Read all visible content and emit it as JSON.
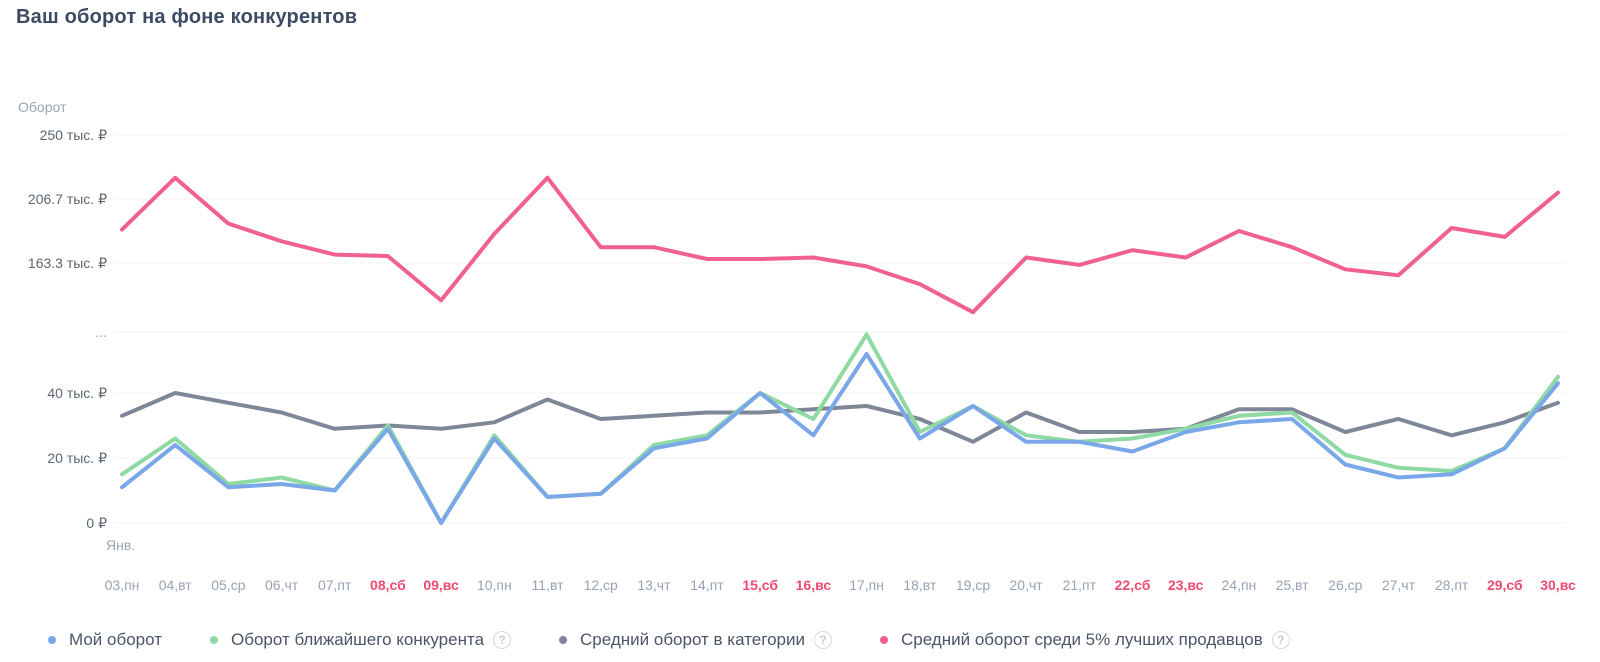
{
  "header": {
    "title": "Ваш оборот на фоне конкурентов"
  },
  "chart_data": {
    "type": "line",
    "title": "Ваш оборот на фоне конкурентов",
    "unit": "тыс. ₽",
    "grid": true,
    "broken_y_axis": true,
    "legend_position": "bottom",
    "y_axis": {
      "title": "Оборот",
      "ticks": [
        {
          "label": "250 тыс. ₽",
          "value": 250
        },
        {
          "label": "206.7 тыс. ₽",
          "value": 206.7
        },
        {
          "label": "163.3 тыс. ₽",
          "value": 163.3
        },
        {
          "label": "...",
          "break": true
        },
        {
          "label": "40 тыс. ₽",
          "value": 40
        },
        {
          "label": "20 тыс. ₽",
          "value": 20
        },
        {
          "label": "0 ₽",
          "value": 0
        }
      ]
    },
    "x_axis": {
      "month_label": "Янв.",
      "categories": [
        {
          "label": "03,пн",
          "weekend": false
        },
        {
          "label": "04,вт",
          "weekend": false
        },
        {
          "label": "05,ср",
          "weekend": false
        },
        {
          "label": "06,чт",
          "weekend": false
        },
        {
          "label": "07,пт",
          "weekend": false
        },
        {
          "label": "08,сб",
          "weekend": true
        },
        {
          "label": "09,вс",
          "weekend": true
        },
        {
          "label": "10,пн",
          "weekend": false
        },
        {
          "label": "11,вт",
          "weekend": false
        },
        {
          "label": "12,ср",
          "weekend": false
        },
        {
          "label": "13,чт",
          "weekend": false
        },
        {
          "label": "14,пт",
          "weekend": false
        },
        {
          "label": "15,сб",
          "weekend": true
        },
        {
          "label": "16,вс",
          "weekend": true
        },
        {
          "label": "17,пн",
          "weekend": false
        },
        {
          "label": "18,вт",
          "weekend": false
        },
        {
          "label": "19,ср",
          "weekend": false
        },
        {
          "label": "20,чт",
          "weekend": false
        },
        {
          "label": "21,пт",
          "weekend": false
        },
        {
          "label": "22,сб",
          "weekend": true
        },
        {
          "label": "23,вс",
          "weekend": true
        },
        {
          "label": "24,пн",
          "weekend": false
        },
        {
          "label": "25,вт",
          "weekend": false
        },
        {
          "label": "26,ср",
          "weekend": false
        },
        {
          "label": "27,чт",
          "weekend": false
        },
        {
          "label": "28,пт",
          "weekend": false
        },
        {
          "label": "29,сб",
          "weekend": true
        },
        {
          "label": "30,вс",
          "weekend": true
        }
      ]
    },
    "series": [
      {
        "id": "my-turnover",
        "name": "Мой оборот",
        "color": "#7aa7e8",
        "help_icon": false,
        "values": [
          11,
          24,
          11,
          12,
          10,
          29,
          0,
          26,
          8,
          9,
          23,
          26,
          40,
          27,
          52,
          26,
          36,
          25,
          25,
          22,
          28,
          31,
          32,
          18,
          14,
          15,
          23,
          43
        ]
      },
      {
        "id": "nearest-competitor-turnover",
        "name": "Оборот ближайшего конкурента",
        "color": "#8fd9a3",
        "help_icon": true,
        "values": [
          15,
          26,
          12,
          14,
          10,
          30,
          0,
          27,
          8,
          9,
          24,
          27,
          40,
          32,
          58,
          28,
          36,
          27,
          25,
          26,
          29,
          33,
          34,
          21,
          17,
          16,
          23,
          45
        ]
      },
      {
        "id": "category-average-turnover",
        "name": "Средний оборот в категории",
        "color": "#7e8797",
        "help_icon": true,
        "values": [
          33,
          40,
          37,
          34,
          29,
          30,
          29,
          31,
          38,
          32,
          33,
          34,
          34,
          35,
          36,
          32,
          25,
          34,
          28,
          28,
          29,
          35,
          35,
          28,
          32,
          27,
          31,
          37
        ]
      },
      {
        "id": "top5-sellers-average-turnover",
        "name": "Средний оборот среди 5% лучших продавцов",
        "color": "#f0618e",
        "help_icon": true,
        "values": [
          186,
          221,
          190,
          178,
          169,
          168,
          138,
          183,
          221,
          174,
          174,
          166,
          166,
          167,
          161,
          149,
          130,
          167,
          162,
          172,
          167,
          185,
          174,
          159,
          155,
          187,
          181,
          211
        ]
      }
    ],
    "colors": {
      "weekend_label": "#ee4b6e",
      "weekday_label": "#97a2b6",
      "tick_label": "#5d6673",
      "muted_label": "#9aa4b5",
      "gridline": "#f0f3f7"
    }
  }
}
